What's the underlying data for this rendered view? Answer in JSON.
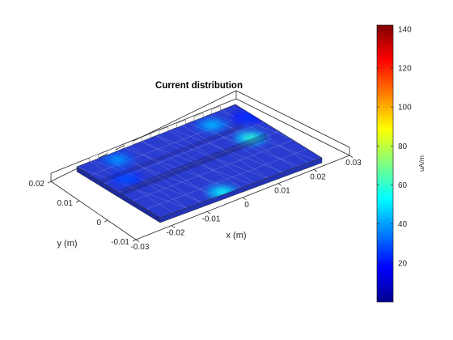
{
  "chart_data": {
    "type": "heatmap",
    "title": "Current distribution",
    "xlabel": "x (m)",
    "ylabel": "y (m)",
    "x_ticks": [
      "-0.03",
      "-0.02",
      "-0.01",
      "0",
      "0.01",
      "0.02",
      "0.03"
    ],
    "y_ticks": [
      "-0.01",
      "0",
      "0.01",
      "0.02"
    ],
    "xlim": [
      -0.03,
      0.03
    ],
    "ylim": [
      -0.01,
      0.02
    ],
    "colorbar": {
      "label": "uA/m",
      "ticks": [
        "20",
        "40",
        "60",
        "80",
        "100",
        "120",
        "140"
      ],
      "tick_values": [
        20,
        40,
        60,
        80,
        100,
        120,
        140
      ],
      "range": [
        0,
        142
      ],
      "colormap": "jet"
    },
    "hotspots": [
      {
        "x": -0.006,
        "y": -0.009,
        "value": 55
      },
      {
        "x": 0.021,
        "y": 0.007,
        "value": 60
      },
      {
        "x": 0.017,
        "y": 0.017,
        "value": 45
      },
      {
        "x": -0.018,
        "y": 0.017,
        "value": 40
      },
      {
        "x": -0.023,
        "y": 0.009,
        "value": 30
      },
      {
        "x": 0.028,
        "y": 0.015,
        "value": 25
      }
    ]
  }
}
